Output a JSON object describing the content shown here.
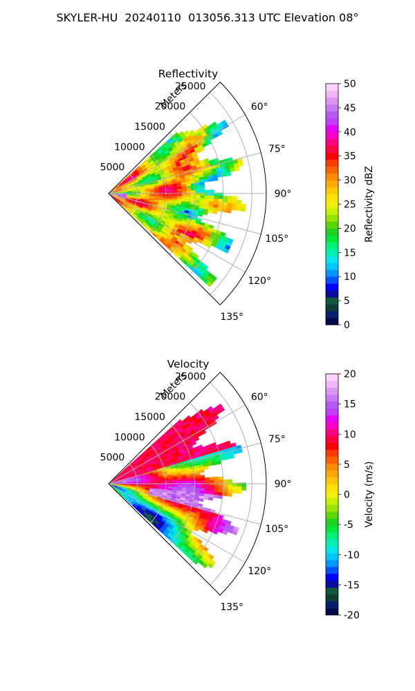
{
  "figure_title": "SKYLER-HU  20240110  013056.313 UTC Elevation 08°",
  "chart_data": [
    {
      "type": "heatmap",
      "title": "Reflectivity",
      "radial_label": "Meters",
      "radial_ticks": [
        5000,
        10000,
        15000,
        20000,
        25000
      ],
      "radial_max": 27500,
      "data_extent_m": 22000,
      "angle_ticks": [
        "60°",
        "75°",
        "90°",
        "105°",
        "120°",
        "135°"
      ],
      "angle_tick_values": [
        60,
        75,
        90,
        105,
        120,
        135
      ],
      "angle_range": [
        45,
        135
      ],
      "field": "reflectivity",
      "colorbar": {
        "label": "Reflectivity dBZ",
        "vmin": 0,
        "vmax": 50,
        "ticks": [
          0,
          5,
          10,
          15,
          20,
          25,
          30,
          35,
          40,
          45,
          50
        ],
        "colors": [
          "#000a4b",
          "#0a1e6e",
          "#0d3f36",
          "#12583e",
          "#0b0ba0",
          "#0000ff",
          "#0050ff",
          "#0096ff",
          "#00c8ff",
          "#00e6e6",
          "#00f0b4",
          "#00f078",
          "#00e63c",
          "#1ed21e",
          "#5ad700",
          "#96e600",
          "#c8f000",
          "#f0f000",
          "#ffe100",
          "#ffc800",
          "#ffaa00",
          "#ff8c00",
          "#ff6400",
          "#ff3c00",
          "#ff0000",
          "#ff0040",
          "#ff0080",
          "#ff00c8",
          "#e600ff",
          "#c040ff",
          "#b45af0",
          "#c878f0",
          "#dc96f0",
          "#f0b4f8",
          "#fad2fc"
        ]
      }
    },
    {
      "type": "heatmap",
      "title": "Velocity",
      "radial_label": "Meters",
      "radial_ticks": [
        5000,
        10000,
        15000,
        20000,
        25000
      ],
      "radial_max": 27500,
      "data_extent_m": 22000,
      "angle_ticks": [
        "60°",
        "75°",
        "90°",
        "105°",
        "120°",
        "135°"
      ],
      "angle_tick_values": [
        60,
        75,
        90,
        105,
        120,
        135
      ],
      "angle_range": [
        45,
        135
      ],
      "field": "velocity",
      "colorbar": {
        "label": "Velocity (m/s)",
        "vmin": -20,
        "vmax": 20,
        "ticks": [
          -20,
          -15,
          -10,
          -5,
          0,
          5,
          10,
          15,
          20
        ],
        "colors": [
          "#000a4b",
          "#0a1e6e",
          "#0d3f36",
          "#12583e",
          "#0b0ba0",
          "#0000ff",
          "#0050ff",
          "#0096ff",
          "#00c8ff",
          "#00e6e6",
          "#00f0b4",
          "#00f078",
          "#00e63c",
          "#1ed21e",
          "#5ad700",
          "#96e600",
          "#c8f000",
          "#f0f000",
          "#ffe100",
          "#ffc800",
          "#ffaa00",
          "#ff8c00",
          "#ff6400",
          "#ff3c00",
          "#ff0000",
          "#ff0040",
          "#ff0080",
          "#ff00c8",
          "#e600ff",
          "#c040ff",
          "#b45af0",
          "#c878f0",
          "#dc96f0",
          "#f0b4f8",
          "#fad2fc"
        ]
      }
    }
  ]
}
